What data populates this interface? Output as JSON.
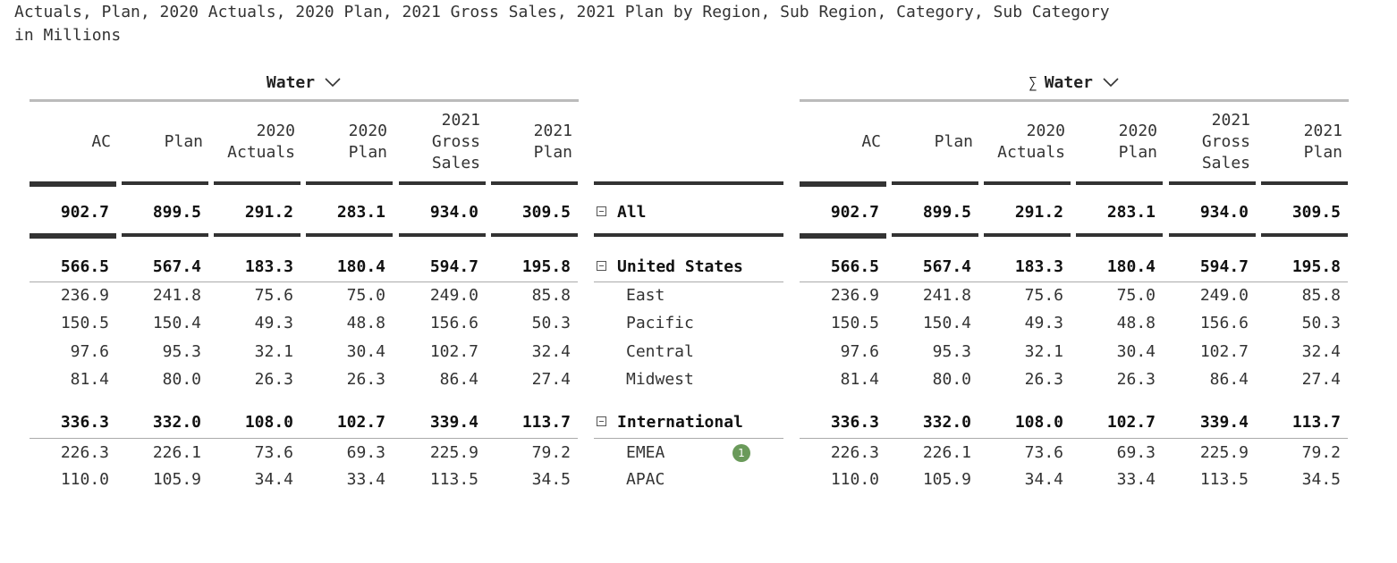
{
  "title": "Actuals, Plan, 2020 Actuals, 2020 Plan, 2021 Gross Sales, 2021 Plan by Region, Sub Region, Category, Sub Category",
  "subtitle": "in Millions",
  "left_group": {
    "label": "Water",
    "icon": "chevron-down-icon"
  },
  "right_group": {
    "sigma": "∑",
    "label": "Water",
    "icon": "chevron-down-icon"
  },
  "columns": [
    "AC",
    "Plan",
    "2020\nActuals",
    "2020\nPlan",
    "2021\nGross\nSales",
    "2021\nPlan"
  ],
  "rows": [
    {
      "label": "All",
      "level": 0,
      "expanded": true,
      "values": [
        "902.7",
        "899.5",
        "291.2",
        "283.1",
        "934.0",
        "309.5"
      ]
    },
    {
      "label": "United States",
      "level": 0,
      "expanded": true,
      "values": [
        "566.5",
        "567.4",
        "183.3",
        "180.4",
        "594.7",
        "195.8"
      ]
    },
    {
      "label": "East",
      "level": 1,
      "values": [
        "236.9",
        "241.8",
        "75.6",
        "75.0",
        "249.0",
        "85.8"
      ]
    },
    {
      "label": "Pacific",
      "level": 1,
      "values": [
        "150.5",
        "150.4",
        "49.3",
        "48.8",
        "156.6",
        "50.3"
      ]
    },
    {
      "label": "Central",
      "level": 1,
      "values": [
        "97.6",
        "95.3",
        "32.1",
        "30.4",
        "102.7",
        "32.4"
      ]
    },
    {
      "label": "Midwest",
      "level": 1,
      "values": [
        "81.4",
        "80.0",
        "26.3",
        "26.3",
        "86.4",
        "27.4"
      ]
    },
    {
      "label": "International",
      "level": 0,
      "expanded": true,
      "values": [
        "336.3",
        "332.0",
        "108.0",
        "102.7",
        "339.4",
        "113.7"
      ]
    },
    {
      "label": "EMEA",
      "level": 1,
      "badge": "1",
      "values": [
        "226.3",
        "226.1",
        "73.6",
        "69.3",
        "225.9",
        "79.2"
      ]
    },
    {
      "label": "APAC",
      "level": 1,
      "values": [
        "110.0",
        "105.9",
        "34.4",
        "33.4",
        "113.5",
        "34.5"
      ]
    }
  ],
  "colors": {
    "badge": "#6a9a5a",
    "bar": "#333333"
  }
}
